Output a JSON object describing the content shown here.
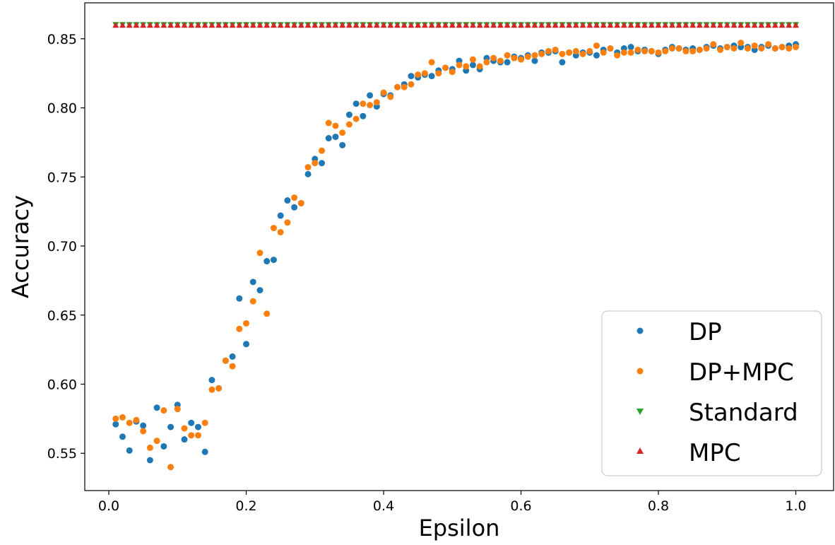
{
  "chart_data": {
    "type": "scatter",
    "title": "",
    "xlabel": "Epsilon",
    "ylabel": "Accuracy",
    "xlim": [
      -0.035,
      1.055
    ],
    "ylim": [
      0.523,
      0.876
    ],
    "xticks": [
      0.0,
      0.2,
      0.4,
      0.6,
      0.8,
      1.0
    ],
    "xtick_labels": [
      "0.0",
      "0.2",
      "0.4",
      "0.6",
      "0.8",
      "1.0"
    ],
    "yticks": [
      0.55,
      0.6,
      0.65,
      0.7,
      0.75,
      0.8,
      0.85
    ],
    "ytick_labels": [
      "0.55",
      "0.60",
      "0.65",
      "0.70",
      "0.75",
      "0.80",
      "0.85"
    ],
    "grid": false,
    "legend_position": "lower-right",
    "series": [
      {
        "name": "DP",
        "marker": "circle",
        "color": "#1f77b4",
        "x": [
          0.01,
          0.02,
          0.03,
          0.04,
          0.05,
          0.06,
          0.07,
          0.08,
          0.09,
          0.1,
          0.11,
          0.12,
          0.13,
          0.14,
          0.15,
          0.16,
          0.17,
          0.18,
          0.19,
          0.2,
          0.21,
          0.22,
          0.23,
          0.24,
          0.25,
          0.26,
          0.27,
          0.28,
          0.29,
          0.3,
          0.31,
          0.32,
          0.33,
          0.34,
          0.35,
          0.36,
          0.37,
          0.38,
          0.39,
          0.4,
          0.41,
          0.42,
          0.43,
          0.44,
          0.45,
          0.46,
          0.47,
          0.48,
          0.49,
          0.5,
          0.51,
          0.52,
          0.53,
          0.54,
          0.55,
          0.56,
          0.57,
          0.58,
          0.59,
          0.6,
          0.61,
          0.62,
          0.63,
          0.64,
          0.65,
          0.66,
          0.67,
          0.68,
          0.69,
          0.7,
          0.71,
          0.72,
          0.73,
          0.74,
          0.75,
          0.76,
          0.77,
          0.78,
          0.79,
          0.8,
          0.81,
          0.82,
          0.83,
          0.84,
          0.85,
          0.86,
          0.87,
          0.88,
          0.89,
          0.9,
          0.91,
          0.92,
          0.93,
          0.94,
          0.95,
          0.96,
          0.97,
          0.98,
          0.99,
          1.0
        ],
        "y": [
          0.571,
          0.562,
          0.552,
          0.573,
          0.57,
          0.545,
          0.583,
          0.555,
          0.569,
          0.585,
          0.56,
          0.572,
          0.569,
          0.551,
          0.603,
          0.597,
          0.617,
          0.62,
          0.662,
          0.629,
          0.674,
          0.668,
          0.689,
          0.69,
          0.722,
          0.733,
          0.728,
          0.731,
          0.752,
          0.763,
          0.76,
          0.778,
          0.779,
          0.773,
          0.795,
          0.803,
          0.794,
          0.809,
          0.801,
          0.81,
          0.809,
          0.815,
          0.817,
          0.823,
          0.822,
          0.824,
          0.823,
          0.827,
          0.829,
          0.828,
          0.834,
          0.827,
          0.831,
          0.828,
          0.836,
          0.834,
          0.833,
          0.833,
          0.837,
          0.836,
          0.838,
          0.834,
          0.84,
          0.84,
          0.841,
          0.833,
          0.84,
          0.838,
          0.84,
          0.84,
          0.838,
          0.842,
          0.843,
          0.84,
          0.843,
          0.844,
          0.841,
          0.842,
          0.841,
          0.839,
          0.842,
          0.844,
          0.843,
          0.842,
          0.843,
          0.842,
          0.844,
          0.845,
          0.843,
          0.844,
          0.845,
          0.844,
          0.844,
          0.842,
          0.844,
          0.845,
          0.843,
          0.844,
          0.845,
          0.846
        ]
      },
      {
        "name": "DP+MPC",
        "marker": "circle",
        "color": "#ff7f0e",
        "x": [
          0.01,
          0.02,
          0.03,
          0.04,
          0.05,
          0.06,
          0.07,
          0.08,
          0.09,
          0.1,
          0.11,
          0.12,
          0.13,
          0.14,
          0.15,
          0.16,
          0.17,
          0.18,
          0.19,
          0.2,
          0.21,
          0.22,
          0.23,
          0.24,
          0.25,
          0.26,
          0.27,
          0.28,
          0.29,
          0.3,
          0.31,
          0.32,
          0.33,
          0.34,
          0.35,
          0.36,
          0.37,
          0.38,
          0.39,
          0.4,
          0.41,
          0.42,
          0.43,
          0.44,
          0.45,
          0.46,
          0.47,
          0.48,
          0.49,
          0.5,
          0.51,
          0.52,
          0.53,
          0.54,
          0.55,
          0.56,
          0.57,
          0.58,
          0.59,
          0.6,
          0.61,
          0.62,
          0.63,
          0.64,
          0.65,
          0.66,
          0.67,
          0.68,
          0.69,
          0.7,
          0.71,
          0.72,
          0.73,
          0.74,
          0.75,
          0.76,
          0.77,
          0.78,
          0.79,
          0.8,
          0.81,
          0.82,
          0.83,
          0.84,
          0.85,
          0.86,
          0.87,
          0.88,
          0.89,
          0.9,
          0.91,
          0.92,
          0.93,
          0.94,
          0.95,
          0.96,
          0.97,
          0.98,
          0.99,
          1.0
        ],
        "y": [
          0.575,
          0.576,
          0.572,
          0.574,
          0.566,
          0.554,
          0.559,
          0.581,
          0.54,
          0.582,
          0.568,
          0.563,
          0.563,
          0.572,
          0.596,
          0.597,
          0.617,
          0.613,
          0.64,
          0.644,
          0.66,
          0.695,
          0.651,
          0.713,
          0.71,
          0.717,
          0.735,
          0.731,
          0.757,
          0.76,
          0.769,
          0.789,
          0.787,
          0.782,
          0.788,
          0.792,
          0.803,
          0.802,
          0.804,
          0.811,
          0.808,
          0.815,
          0.815,
          0.817,
          0.824,
          0.825,
          0.833,
          0.825,
          0.829,
          0.826,
          0.831,
          0.83,
          0.835,
          0.83,
          0.833,
          0.836,
          0.834,
          0.838,
          0.836,
          0.835,
          0.837,
          0.838,
          0.839,
          0.841,
          0.842,
          0.839,
          0.84,
          0.841,
          0.839,
          0.841,
          0.845,
          0.84,
          0.843,
          0.838,
          0.84,
          0.84,
          0.842,
          0.841,
          0.841,
          0.84,
          0.841,
          0.843,
          0.843,
          0.841,
          0.841,
          0.842,
          0.843,
          0.846,
          0.842,
          0.844,
          0.843,
          0.847,
          0.843,
          0.845,
          0.843,
          0.846,
          0.843,
          0.844,
          0.843,
          0.844
        ]
      },
      {
        "name": "Standard",
        "marker": "triangle-down",
        "color": "#2ca02c",
        "x_start": 0.01,
        "x_end": 1.0,
        "x_step": 0.01,
        "value": 0.86
      },
      {
        "name": "MPC",
        "marker": "triangle-up",
        "color": "#d62728",
        "x_start": 0.01,
        "x_end": 1.0,
        "x_step": 0.01,
        "value": 0.86
      }
    ]
  }
}
